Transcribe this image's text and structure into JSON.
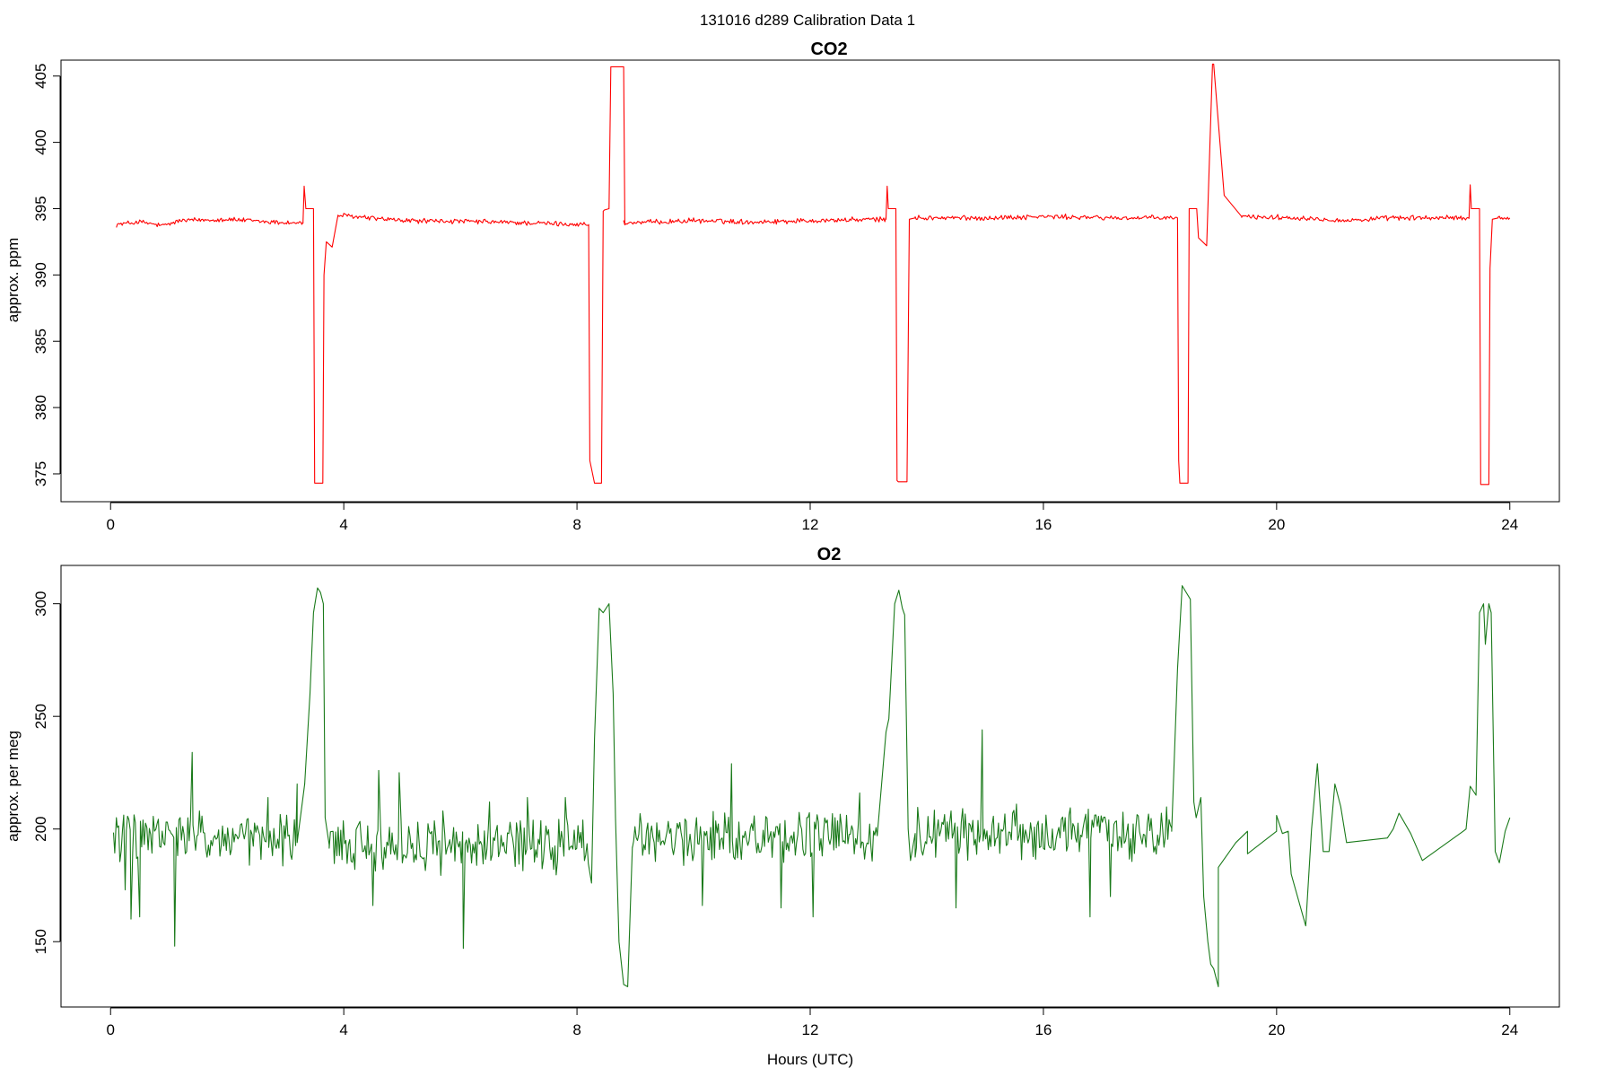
{
  "figure": {
    "supertitle": "131016   d289   Calibration Data 1",
    "xlabel": "Hours (UTC)"
  },
  "chart_data": [
    {
      "type": "line",
      "title": "CO2",
      "xlabel": "",
      "ylabel": "approx. ppm",
      "color": "#ff0000",
      "xlim": [
        -0.85,
        24.85
      ],
      "ylim": [
        372.9,
        406.2
      ],
      "x_ticks": [
        0,
        4,
        8,
        12,
        16,
        20,
        24
      ],
      "y_ticks": [
        375,
        380,
        385,
        390,
        395,
        400,
        405
      ],
      "grid": false,
      "baseline": {
        "segments": [
          [
            [
              0.1,
              393.8
            ],
            [
              0.5,
              394.0
            ],
            [
              0.9,
              393.7
            ],
            [
              1.2,
              394.1
            ],
            [
              2.0,
              394.2
            ],
            [
              2.7,
              394.0
            ],
            [
              3.3,
              393.9
            ]
          ],
          [
            [
              3.9,
              394.5
            ],
            [
              5.0,
              394.1
            ],
            [
              6.5,
              394.0
            ],
            [
              7.3,
              393.9
            ],
            [
              8.2,
              393.8
            ]
          ],
          [
            [
              8.8,
              393.9
            ],
            [
              10.0,
              394.1
            ],
            [
              11.0,
              394.0
            ],
            [
              12.0,
              394.1
            ],
            [
              13.3,
              394.2
            ]
          ],
          [
            [
              13.8,
              394.3
            ],
            [
              15.0,
              394.3
            ],
            [
              16.0,
              394.4
            ],
            [
              17.2,
              394.3
            ],
            [
              18.3,
              394.3
            ]
          ],
          [
            [
              19.4,
              394.4
            ],
            [
              20.5,
              394.3
            ],
            [
              21.2,
              394.1
            ],
            [
              22.0,
              394.3
            ],
            [
              23.3,
              394.3
            ]
          ],
          [
            [
              23.8,
              394.3
            ],
            [
              24.0,
              394.3
            ]
          ]
        ],
        "noise": 0.15
      },
      "calibration_events": [
        {
          "x": [
            3.3,
            3.32,
            3.35,
            3.38,
            3.48,
            3.5,
            3.52,
            3.64,
            3.66,
            3.7,
            3.8,
            3.9
          ],
          "y": [
            393.9,
            396.7,
            395.0,
            395.0,
            395.0,
            374.3,
            374.3,
            374.3,
            390.0,
            392.5,
            392.1,
            394.5
          ]
        },
        {
          "x": [
            8.2,
            8.22,
            8.3,
            8.31,
            8.42,
            8.45,
            8.47,
            8.55,
            8.58,
            8.8,
            8.82
          ],
          "y": [
            393.8,
            376.0,
            374.3,
            374.3,
            374.3,
            394.8,
            394.9,
            395.0,
            405.7,
            405.7,
            393.9
          ]
        },
        {
          "x": [
            13.3,
            13.32,
            13.34,
            13.38,
            13.47,
            13.49,
            13.51,
            13.66,
            13.7,
            13.8
          ],
          "y": [
            394.2,
            396.7,
            395.0,
            395.0,
            395.0,
            374.5,
            374.4,
            374.4,
            394.2,
            394.3
          ]
        },
        {
          "x": [
            18.3,
            18.32,
            18.34,
            18.48,
            18.5,
            18.52,
            18.63,
            18.66,
            18.8,
            18.9,
            18.92,
            19.1,
            19.4
          ],
          "y": [
            394.3,
            376.0,
            374.3,
            374.3,
            395.0,
            395.0,
            395.0,
            392.8,
            392.2,
            405.9,
            405.9,
            396.0,
            394.4
          ]
        },
        {
          "x": [
            23.3,
            23.32,
            23.34,
            23.38,
            23.48,
            23.5,
            23.52,
            23.64,
            23.66,
            23.7,
            23.8
          ],
          "y": [
            394.3,
            396.8,
            395.0,
            395.0,
            395.0,
            374.2,
            374.2,
            374.2,
            390.5,
            394.2,
            394.3
          ]
        }
      ]
    },
    {
      "type": "line",
      "title": "O2",
      "xlabel": "Hours (UTC)",
      "ylabel": "approx. per meg",
      "color": "#1a7a1a",
      "xlim": [
        -0.85,
        24.85
      ],
      "ylim": [
        121,
        317
      ],
      "x_ticks": [
        0,
        4,
        8,
        12,
        16,
        20,
        24
      ],
      "y_ticks": [
        150,
        200,
        250,
        300
      ],
      "grid": false,
      "baseline": {
        "segments": [
          [
            [
              0.05,
              197
            ],
            [
              3.2,
              194
            ]
          ],
          [
            [
              3.75,
              193
            ],
            [
              8.2,
              192
            ]
          ],
          [
            [
              8.95,
              196
            ],
            [
              13.15,
              197
            ]
          ],
          [
            [
              13.8,
              198
            ],
            [
              18.2,
              199
            ]
          ]
        ],
        "noise": 9,
        "spikes": [
          [
            0.1,
            205
          ],
          [
            0.25,
            173
          ],
          [
            0.35,
            160
          ],
          [
            0.5,
            161
          ],
          [
            1.1,
            148
          ],
          [
            1.4,
            234
          ],
          [
            2.7,
            214
          ],
          [
            3.2,
            220
          ],
          [
            4.6,
            226
          ],
          [
            4.5,
            166
          ],
          [
            4.95,
            225
          ],
          [
            5.7,
            208
          ],
          [
            6.05,
            147
          ],
          [
            6.5,
            212
          ],
          [
            7.15,
            214
          ],
          [
            7.8,
            214
          ],
          [
            8.1,
            204
          ],
          [
            10.15,
            166
          ],
          [
            10.65,
            229
          ],
          [
            11.5,
            165
          ],
          [
            12.05,
            161
          ],
          [
            12.85,
            216
          ],
          [
            14.95,
            244
          ],
          [
            14.5,
            165
          ],
          [
            16.8,
            161
          ],
          [
            17.15,
            170
          ]
        ]
      },
      "calibration_events": [
        {
          "x": [
            3.2,
            3.33,
            3.42,
            3.48,
            3.55,
            3.6,
            3.65,
            3.68,
            3.75
          ],
          "y": [
            194,
            220,
            260,
            296,
            307,
            305,
            300,
            205,
            193
          ]
        },
        {
          "x": [
            8.25,
            8.3,
            8.38,
            8.45,
            8.55,
            8.62,
            8.66,
            8.72,
            8.8,
            8.87,
            8.95
          ],
          "y": [
            176,
            240,
            298,
            296,
            300,
            260,
            205,
            150,
            131,
            130,
            192
          ]
        },
        {
          "x": [
            13.15,
            13.3,
            13.35,
            13.45,
            13.52,
            13.58,
            13.62,
            13.68,
            13.72,
            13.8
          ],
          "y": [
            197,
            243,
            249,
            300,
            306,
            298,
            295,
            200,
            186,
            198
          ]
        },
        {
          "x": [
            18.2,
            18.3,
            18.38,
            18.45,
            18.52,
            18.58,
            18.62,
            18.7,
            18.75,
            18.82,
            18.87,
            18.92,
            19.0
          ],
          "y": [
            199,
            271,
            308,
            305,
            302,
            212,
            205,
            214,
            170,
            150,
            140,
            138,
            130
          ]
        },
        {
          "x": [
            23.25,
            23.32,
            23.42,
            23.48,
            23.55,
            23.58,
            23.64,
            23.68,
            23.75,
            23.82,
            23.92,
            24.0
          ],
          "y": [
            200,
            219,
            215,
            296,
            300,
            282,
            300,
            296,
            190,
            185,
            199,
            205
          ]
        }
      ],
      "sparse_points": [
        [
          19.0,
          183
        ],
        [
          19.3,
          194
        ],
        [
          19.5,
          199
        ],
        [
          19.5,
          189
        ],
        [
          20.0,
          199
        ],
        [
          20.0,
          206
        ],
        [
          20.1,
          198
        ],
        [
          20.2,
          199
        ],
        [
          20.25,
          180
        ],
        [
          20.5,
          157
        ],
        [
          20.6,
          200
        ],
        [
          20.7,
          229
        ],
        [
          20.8,
          190
        ],
        [
          20.9,
          190
        ],
        [
          21.0,
          220
        ],
        [
          21.1,
          210
        ],
        [
          21.2,
          194
        ],
        [
          21.9,
          196
        ],
        [
          22.0,
          200
        ],
        [
          22.1,
          207
        ],
        [
          22.3,
          198
        ],
        [
          22.5,
          186
        ],
        [
          23.2,
          199
        ],
        [
          23.25,
          200
        ]
      ]
    }
  ]
}
